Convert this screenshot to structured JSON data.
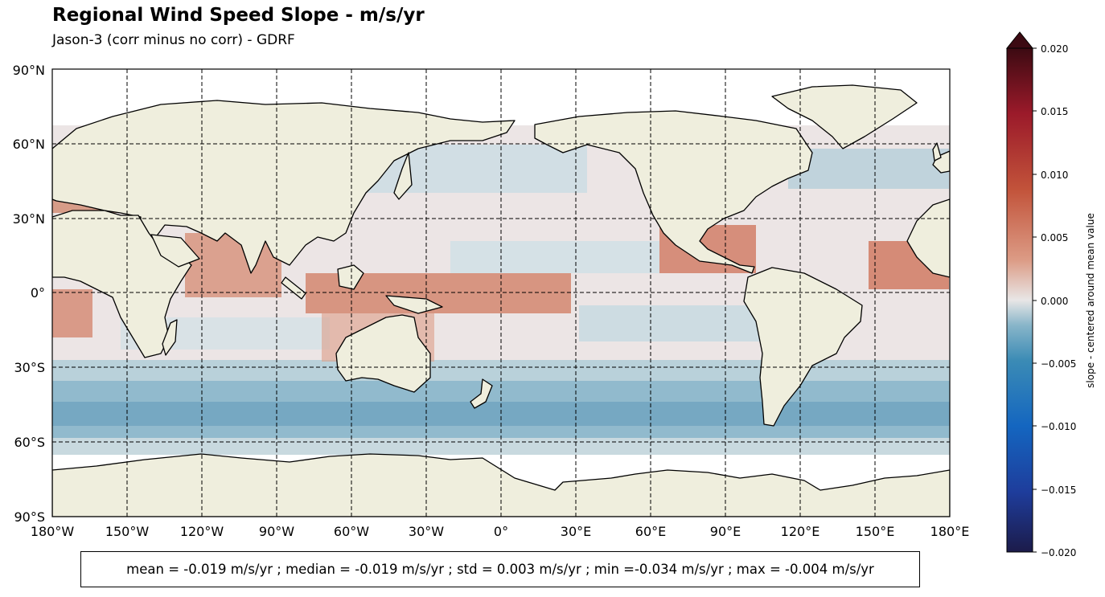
{
  "figure": {
    "title": "Regional Wind Speed Slope - m/s/yr",
    "subtitle": "Jason-3 (corr minus no corr) - GDRF",
    "stats_text": "mean = -0.019 m/s/yr ; median = -0.019 m/s/yr ; std = 0.003 m/s/yr ; min =-0.034 m/s/yr ; max = -0.004 m/s/yr"
  },
  "map": {
    "projection": "PlateCarree",
    "central_longitude": 180,
    "land_color": "#efeedd",
    "gridlines": "dashed",
    "lat_ticks": [
      "90°N",
      "60°N",
      "30°N",
      "0°",
      "30°S",
      "60°S",
      "90°S"
    ],
    "lon_ticks": [
      "180°W",
      "150°W",
      "120°W",
      "90°W",
      "60°W",
      "30°W",
      "0°",
      "30°E",
      "60°E",
      "90°E",
      "120°E",
      "150°E",
      "180°E"
    ]
  },
  "colorbar": {
    "label": "slope - centered around mean value",
    "ticks": [
      "0.020",
      "0.015",
      "0.010",
      "0.005",
      "0.000",
      "−0.005",
      "−0.010",
      "−0.015",
      "−0.020"
    ],
    "range": [
      -0.02,
      0.02
    ],
    "extend": "max",
    "colors": [
      "#1c1b4a",
      "#1e3d9c",
      "#1466c0",
      "#3b8bb5",
      "#88b5c9",
      "#e8e6e6",
      "#dc9b85",
      "#c2533a",
      "#9b1a2a",
      "#3c0a12"
    ]
  }
}
